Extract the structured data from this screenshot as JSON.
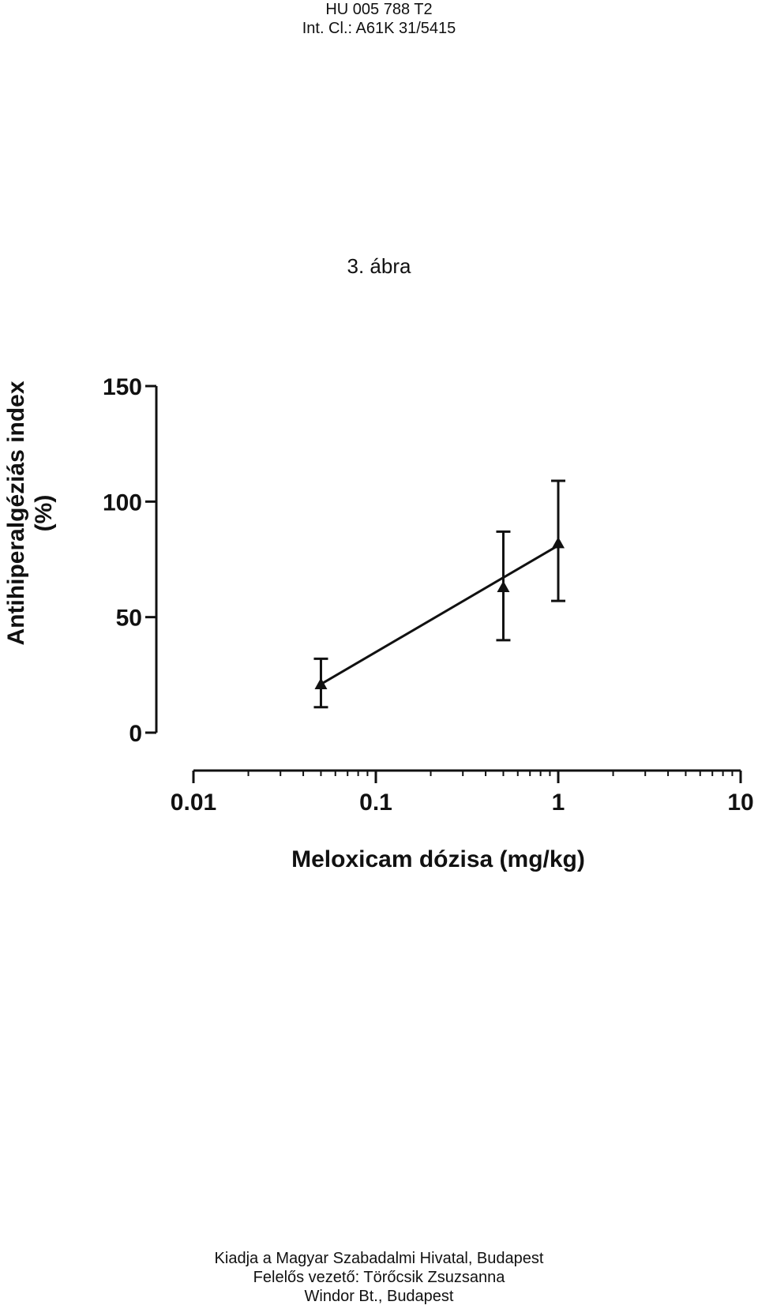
{
  "header": {
    "doc_number": "HU 005 788 T2",
    "classification": "Int. Cl.: A61K 31/5415"
  },
  "figure_label": "3. ábra",
  "chart_data": {
    "type": "line",
    "title": "",
    "ylabel_line1": "Antihiperalgéziás index",
    "ylabel_line2": "(%)",
    "xlabel": "Meloxicam dózisa (mg/kg)",
    "x_scale": "log",
    "xlim": [
      0.01,
      10
    ],
    "ylim": [
      0,
      150
    ],
    "x_ticks": [
      {
        "value": 0.01,
        "label": "0.01"
      },
      {
        "value": 0.1,
        "label": "0.1"
      },
      {
        "value": 1,
        "label": "1"
      },
      {
        "value": 10,
        "label": "10"
      }
    ],
    "y_ticks": [
      {
        "value": 0,
        "label": "0"
      },
      {
        "value": 50,
        "label": "50"
      },
      {
        "value": 100,
        "label": "100"
      },
      {
        "value": 150,
        "label": "150"
      }
    ],
    "points": [
      {
        "x": 0.05,
        "y": 21,
        "err_low": 11,
        "err_high": 32
      },
      {
        "x": 0.5,
        "y": 63,
        "err_low": 40,
        "err_high": 87
      },
      {
        "x": 1,
        "y": 82,
        "err_low": 57,
        "err_high": 109
      }
    ],
    "fit_line": {
      "x": [
        0.05,
        1
      ],
      "y": [
        21,
        81
      ]
    },
    "marker": "triangle",
    "grid": false,
    "legend": "none"
  },
  "footer": {
    "line1": "Kiadja a Magyar Szabadalmi Hivatal, Budapest",
    "line2": "Felelős vezető: Törőcsik Zsuzsanna",
    "line3": "Windor Bt., Budapest"
  }
}
